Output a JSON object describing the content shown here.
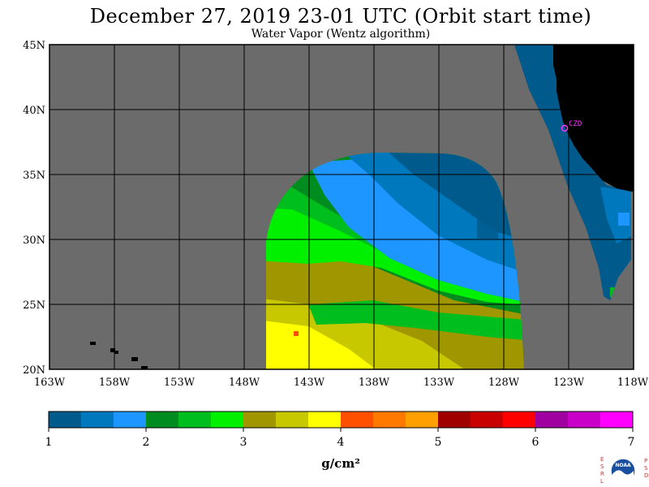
{
  "header": {
    "title": "December 27, 2019  23-01 UTC  (Orbit start time)",
    "subtitle": "Water Vapor (Wentz algorithm)"
  },
  "map": {
    "lat_labels": [
      "45N",
      "40N",
      "35N",
      "30N",
      "25N",
      "20N"
    ],
    "lon_labels": [
      "163W",
      "158W",
      "153W",
      "148W",
      "143W",
      "138W",
      "133W",
      "128W",
      "123W",
      "118W"
    ],
    "station_label": "CZD",
    "colors": {
      "no_data": "#6b6b6b",
      "land": "#000000",
      "grid": "#000000",
      "station": "#ff33ff"
    }
  },
  "colorbar": {
    "tick_labels": [
      "1",
      "2",
      "3",
      "4",
      "5",
      "6",
      "7"
    ],
    "unit_label": "g/cm²",
    "colors": [
      "#005a8c",
      "#0078be",
      "#1e96ff",
      "#008c1e",
      "#00be1e",
      "#00f000",
      "#a09600",
      "#c8c800",
      "#ffff00",
      "#ff5000",
      "#ff7800",
      "#ffa000",
      "#a00000",
      "#c80000",
      "#ff0000",
      "#a000a0",
      "#c800c8",
      "#ff00ff"
    ]
  },
  "logo": {
    "left_letters": "ESRL",
    "right_letters": "PSD",
    "text": "NOAA"
  }
}
